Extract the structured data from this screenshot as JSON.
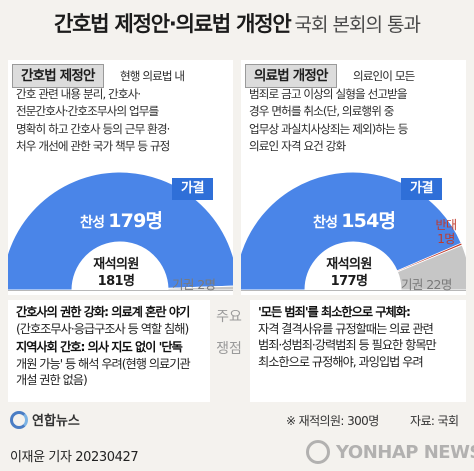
{
  "title": {
    "main": "간호법 제정안·의료법 개정안",
    "sub": "국회 본회의 통과"
  },
  "colors": {
    "yes": "#4a85e8",
    "yes_dark": "#2f6fd8",
    "abstain": "#c6c6c6",
    "oppose": "#c0392b"
  },
  "panels": [
    {
      "tag": "간호법 제정안",
      "desc_lines": [
        "현행 의료법 내",
        "간호 관련 내용 분리, 간호사·",
        "전문간호사·간호조무사의 업무를",
        "명확히 하고 간호사 등의 근무 환경·",
        "처우 개선에 관한 국가 책무 등 규정"
      ],
      "badge": "가결",
      "yes_label": "찬성",
      "yes_value": "179명",
      "present_label": "재석의원",
      "present_value": "181명",
      "abstain_label": "기권",
      "abstain_value": "2명"
    },
    {
      "tag": "의료법 개정안",
      "desc_lines": [
        "의료인이 모든",
        "범죄로 금고 이상의 실형을 선고받을",
        "경우 면허를 취소(단, 의료행위 중",
        "업무상 과실치사상죄는 제외)하는 등",
        "의료인 자격 요건 강화"
      ],
      "badge": "가결",
      "yes_label": "찬성",
      "yes_value": "154명",
      "present_label": "재석의원",
      "present_value": "177명",
      "abstain_label": "기권",
      "abstain_value": "22명",
      "oppose_label": "반대",
      "oppose_value": "1명"
    }
  ],
  "chart_data": [
    {
      "type": "pie",
      "title": "간호법 제정안",
      "labels": [
        "찬성",
        "기권"
      ],
      "values": [
        179,
        2
      ],
      "total": 181
    },
    {
      "type": "pie",
      "title": "의료법 개정안",
      "labels": [
        "찬성",
        "반대",
        "기권"
      ],
      "values": [
        154,
        1,
        22
      ],
      "total": 177
    }
  ],
  "issues": {
    "label_top": "주요",
    "label_bottom": "쟁점",
    "left": [
      {
        "lines": [
          "간호사의 권한 강화: 의료계 혼란 야기",
          "(간호조무사·응급구조사 등 역할 침해)"
        ]
      },
      {
        "lines": [
          "지역사회 간호: 의사 지도 없이 '단독",
          "개원 가능' 등 해석 우려(현행 의료기관",
          "개설 권한 없음)"
        ]
      }
    ],
    "right": [
      {
        "lines": [
          "'모든 범죄'를 최소한으로 구체화:",
          "자격 결격사유를 규정할때는 의료 관련",
          "범죄·성범죄·강력범죄 등 필요한 항목만",
          "최소한으로 규정해야, 과잉입법 우려"
        ]
      }
    ]
  },
  "footer": {
    "note": "※ 재적의원: 300명",
    "source": "자료: 국회",
    "logo": "연합뉴스",
    "credit": "이재윤 기자  20230427",
    "watermark": "YONHAP NEWS"
  }
}
